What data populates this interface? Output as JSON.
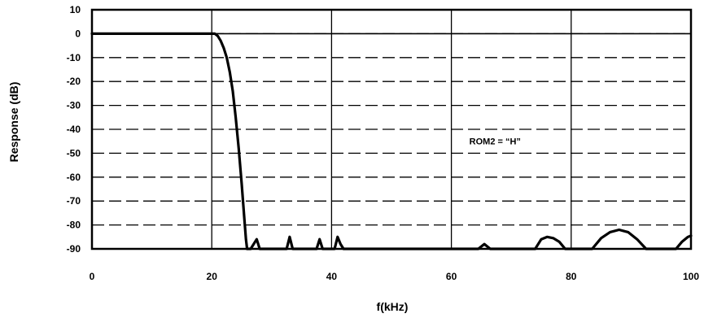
{
  "chart_data": {
    "type": "line",
    "title": "",
    "xlabel": "f(kHz)",
    "ylabel": "Response (dB)",
    "xlim": [
      0,
      100
    ],
    "ylim": [
      -90,
      10
    ],
    "x_ticks": [
      0,
      20,
      40,
      60,
      80,
      100
    ],
    "x_tick_labels": [
      "0",
      "20",
      "40",
      "60",
      "80",
      "100"
    ],
    "y_ticks": [
      10,
      0,
      -10,
      -20,
      -30,
      -40,
      -50,
      -60,
      -70,
      -80,
      -90
    ],
    "y_tick_labels": [
      "10",
      "0",
      "-10",
      "-20",
      "-30",
      "-40",
      "-50",
      "-60",
      "-70",
      "-80",
      "-90"
    ],
    "grid": {
      "major_x": "solid",
      "major_y": "dashed"
    },
    "annotations": [
      {
        "text": "ROM2 = “H”",
        "x": 63,
        "y": -45
      }
    ],
    "series": [
      {
        "x": [
          0,
          19.5,
          20.5,
          21.0,
          21.5,
          22.0,
          22.5,
          23.0,
          23.5,
          24.0,
          24.5,
          25.0,
          25.4,
          25.7,
          25.9,
          26.0,
          26.5,
          27.5,
          28.0,
          32.5,
          33.0,
          33.5,
          37.5,
          38.0,
          38.5,
          40.5,
          41.0,
          41.5,
          42.0,
          64.5,
          65.5,
          66.5,
          74.0,
          75.0,
          76.0,
          77.0,
          78.0,
          79.0,
          83.5,
          85.0,
          86.5,
          88.0,
          89.5,
          91.0,
          92.5,
          97.5,
          98.5,
          99.5,
          100.0
        ],
        "y": [
          0,
          0,
          0,
          -1,
          -3,
          -6,
          -10,
          -16,
          -24,
          -35,
          -48,
          -63,
          -76,
          -86,
          -90,
          -90,
          -90,
          -86,
          -90,
          -90,
          -85,
          -90,
          -90,
          -86,
          -90,
          -90,
          -85,
          -88,
          -90,
          -90,
          -88,
          -90,
          -90,
          -86,
          -85,
          -85.5,
          -87,
          -90,
          -90,
          -85.5,
          -83,
          -82,
          -83,
          -86,
          -90,
          -90,
          -87,
          -85,
          -84.5
        ]
      }
    ]
  }
}
